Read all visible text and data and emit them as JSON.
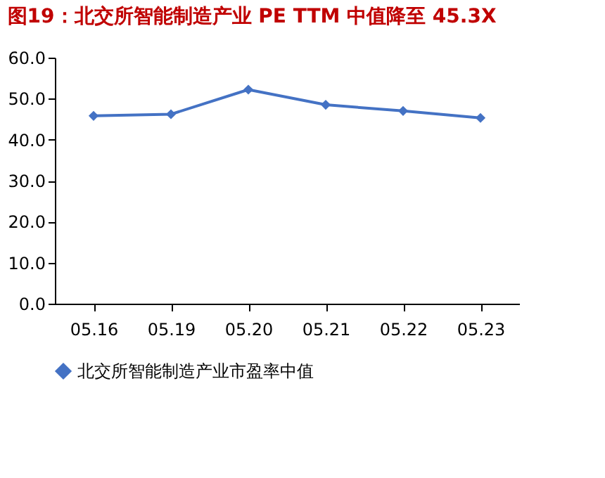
{
  "chart_data": {
    "type": "line",
    "title": "图19：北交所智能制造产业 PE TTM 中值降至 45.3X",
    "categories": [
      "05.16",
      "05.19",
      "05.20",
      "05.21",
      "05.22",
      "05.23"
    ],
    "series": [
      {
        "name": "北交所智能制造产业市盈率中值",
        "color": "#4472c4",
        "values": [
          45.8,
          46.2,
          52.2,
          48.5,
          47.0,
          45.3
        ]
      }
    ],
    "ylim": [
      0,
      60
    ],
    "yticks": [
      {
        "value": 0,
        "label": "0.0"
      },
      {
        "value": 10,
        "label": "10.0"
      },
      {
        "value": 20,
        "label": "20.0"
      },
      {
        "value": 30,
        "label": "30.0"
      },
      {
        "value": 40,
        "label": "40.0"
      },
      {
        "value": 50,
        "label": "50.0"
      },
      {
        "value": 60,
        "label": "60.0"
      }
    ],
    "grid": false,
    "legend": "bottom",
    "marker": "diamond",
    "line_style": "solid"
  }
}
